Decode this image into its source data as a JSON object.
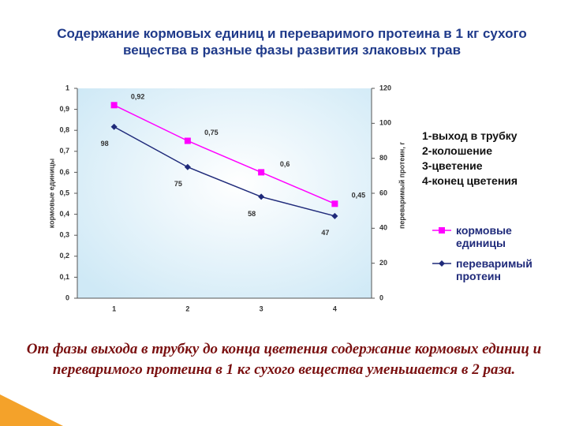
{
  "chart_data": {
    "type": "line",
    "title": "Содержание кормовых единиц и переваримого протеина в 1 кг сухого вещества в разные фазы развития злаковых трав",
    "categories": [
      "1",
      "2",
      "3",
      "4"
    ],
    "series": [
      {
        "name": "кормовые единицы",
        "color": "#ff00ff",
        "marker": "square",
        "values": [
          0.92,
          0.75,
          0.6,
          0.45
        ],
        "value_labels": [
          "0,92",
          "0,75",
          "0,6",
          "0,45"
        ]
      },
      {
        "name": "переваримый протеин",
        "color": "#1f2a7a",
        "marker": "diamond",
        "axis": "y2",
        "values": [
          98,
          75,
          58,
          47
        ]
      }
    ],
    "ylabel": "кормовые единицы",
    "y2label": "переваримый протеин, г",
    "ylim": [
      0,
      1
    ],
    "yticks": [
      0,
      {
        "value": 0.1,
        "label": "0,1"
      },
      {
        "value": 0.2,
        "label": "0,2"
      },
      {
        "value": 0.3,
        "label": "0,3"
      },
      {
        "value": 0.4,
        "label": "0,4"
      },
      {
        "value": 0.5,
        "label": "0,5"
      },
      {
        "value": 0.6,
        "label": "0,6"
      },
      {
        "value": 0.7,
        "label": "0,7"
      },
      {
        "value": 0.8,
        "label": "0,8"
      },
      {
        "value": 0.9,
        "label": "0,9"
      },
      1
    ],
    "y2lim": [
      0,
      120
    ],
    "y2ticks": [
      0,
      20,
      40,
      60,
      80,
      100,
      120
    ],
    "annotations": [
      "1-выход в трубку",
      "2-колошение",
      "3-цветение",
      "4-конец цветения"
    ],
    "note": "От фазы выхода в трубку до конца цветения содержание кормовых единиц и переваримого протеина в 1 кг сухого вещества уменьшается в 2 раза."
  }
}
